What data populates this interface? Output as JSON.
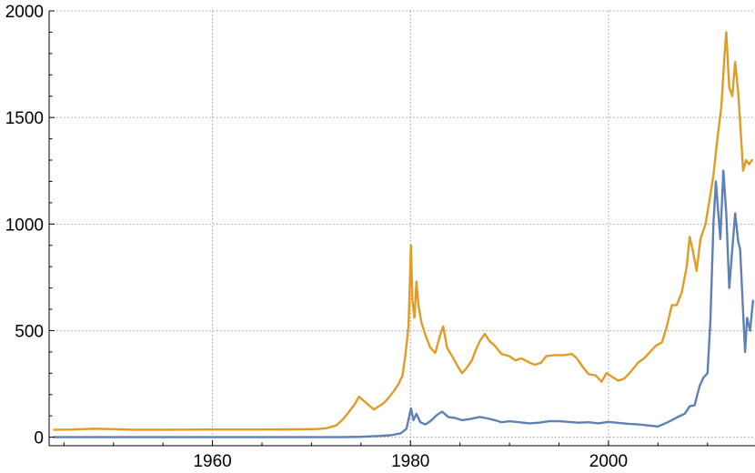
{
  "chart_data": {
    "type": "line",
    "title": "",
    "xlabel": "",
    "ylabel": "",
    "xlim": [
      1943.5,
      2014.8
    ],
    "ylim": [
      -40,
      2000
    ],
    "grid": true,
    "legend": "none",
    "x_ticks": [
      1960,
      1980,
      2000
    ],
    "x_tick_labels": [
      "1960",
      "1980",
      "2000"
    ],
    "y_ticks": [
      0,
      500,
      1000,
      1500,
      2000
    ],
    "y_tick_labels": [
      "0",
      "500",
      "1000",
      "1500",
      "2000"
    ],
    "series": [
      {
        "color": "#E09C24",
        "points": [
          [
            1944,
            35
          ],
          [
            1946,
            36
          ],
          [
            1948,
            40
          ],
          [
            1950,
            38
          ],
          [
            1952,
            35
          ],
          [
            1955,
            35
          ],
          [
            1960,
            36
          ],
          [
            1965,
            36
          ],
          [
            1969,
            37
          ],
          [
            1970.5,
            38
          ],
          [
            1971.5,
            42
          ],
          [
            1972.5,
            55
          ],
          [
            1973.2,
            85
          ],
          [
            1973.8,
            120
          ],
          [
            1974.3,
            150
          ],
          [
            1974.8,
            190
          ],
          [
            1975.3,
            170
          ],
          [
            1975.8,
            150
          ],
          [
            1976.3,
            130
          ],
          [
            1976.8,
            145
          ],
          [
            1977.3,
            160
          ],
          [
            1977.8,
            185
          ],
          [
            1978.3,
            215
          ],
          [
            1978.8,
            250
          ],
          [
            1979.2,
            290
          ],
          [
            1979.5,
            390
          ],
          [
            1979.8,
            520
          ],
          [
            1980.05,
            900
          ],
          [
            1980.2,
            640
          ],
          [
            1980.4,
            560
          ],
          [
            1980.6,
            730
          ],
          [
            1980.8,
            620
          ],
          [
            1981.1,
            540
          ],
          [
            1981.5,
            480
          ],
          [
            1982,
            420
          ],
          [
            1982.5,
            395
          ],
          [
            1983,
            480
          ],
          [
            1983.3,
            520
          ],
          [
            1983.7,
            420
          ],
          [
            1984.2,
            380
          ],
          [
            1984.8,
            330
          ],
          [
            1985.2,
            300
          ],
          [
            1985.6,
            320
          ],
          [
            1986.2,
            360
          ],
          [
            1986.6,
            410
          ],
          [
            1987,
            450
          ],
          [
            1987.5,
            485
          ],
          [
            1988,
            450
          ],
          [
            1988.5,
            430
          ],
          [
            1989.2,
            390
          ],
          [
            1990,
            380
          ],
          [
            1990.6,
            360
          ],
          [
            1991.2,
            370
          ],
          [
            1992,
            350
          ],
          [
            1992.6,
            340
          ],
          [
            1993.2,
            350
          ],
          [
            1993.7,
            380
          ],
          [
            1994.5,
            385
          ],
          [
            1995.5,
            385
          ],
          [
            1996.3,
            390
          ],
          [
            1996.8,
            370
          ],
          [
            1997.4,
            330
          ],
          [
            1998,
            295
          ],
          [
            1998.7,
            290
          ],
          [
            1999.3,
            260
          ],
          [
            1999.8,
            300
          ],
          [
            2000.3,
            285
          ],
          [
            2001,
            265
          ],
          [
            2001.6,
            275
          ],
          [
            2002.2,
            305
          ],
          [
            2003,
            350
          ],
          [
            2003.6,
            370
          ],
          [
            2004.2,
            400
          ],
          [
            2004.8,
            430
          ],
          [
            2005.4,
            445
          ],
          [
            2005.9,
            520
          ],
          [
            2006.4,
            620
          ],
          [
            2006.9,
            620
          ],
          [
            2007.4,
            680
          ],
          [
            2007.9,
            800
          ],
          [
            2008.2,
            940
          ],
          [
            2008.5,
            880
          ],
          [
            2008.9,
            780
          ],
          [
            2009.3,
            930
          ],
          [
            2009.8,
            1000
          ],
          [
            2010.2,
            1110
          ],
          [
            2010.6,
            1230
          ],
          [
            2011,
            1400
          ],
          [
            2011.4,
            1550
          ],
          [
            2011.7,
            1780
          ],
          [
            2011.9,
            1900
          ],
          [
            2012.2,
            1640
          ],
          [
            2012.5,
            1600
          ],
          [
            2012.8,
            1760
          ],
          [
            2013.1,
            1620
          ],
          [
            2013.4,
            1400
          ],
          [
            2013.6,
            1250
          ],
          [
            2013.9,
            1300
          ],
          [
            2014.2,
            1280
          ],
          [
            2014.5,
            1300
          ]
        ]
      },
      {
        "color": "#5E81B5",
        "points": [
          [
            1944,
            0
          ],
          [
            1950,
            0
          ],
          [
            1955,
            0
          ],
          [
            1960,
            0
          ],
          [
            1965,
            0
          ],
          [
            1970,
            0
          ],
          [
            1973,
            0
          ],
          [
            1975,
            2
          ],
          [
            1977,
            6
          ],
          [
            1978,
            9
          ],
          [
            1979,
            18
          ],
          [
            1979.6,
            40
          ],
          [
            1980.05,
            135
          ],
          [
            1980.3,
            80
          ],
          [
            1980.6,
            110
          ],
          [
            1981,
            70
          ],
          [
            1981.5,
            60
          ],
          [
            1982,
            75
          ],
          [
            1982.7,
            105
          ],
          [
            1983.2,
            120
          ],
          [
            1983.8,
            95
          ],
          [
            1984.5,
            90
          ],
          [
            1985.2,
            80
          ],
          [
            1986,
            85
          ],
          [
            1987,
            95
          ],
          [
            1987.8,
            88
          ],
          [
            1988.5,
            80
          ],
          [
            1989.2,
            70
          ],
          [
            1990,
            75
          ],
          [
            1991,
            70
          ],
          [
            1992,
            65
          ],
          [
            1993,
            68
          ],
          [
            1994,
            75
          ],
          [
            1995,
            75
          ],
          [
            1996,
            72
          ],
          [
            1997,
            68
          ],
          [
            1998,
            70
          ],
          [
            1999,
            65
          ],
          [
            2000,
            72
          ],
          [
            2001,
            67
          ],
          [
            2002,
            63
          ],
          [
            2003,
            60
          ],
          [
            2004,
            55
          ],
          [
            2005,
            50
          ],
          [
            2006,
            70
          ],
          [
            2007,
            95
          ],
          [
            2007.7,
            110
          ],
          [
            2008.2,
            145
          ],
          [
            2008.7,
            150
          ],
          [
            2009.2,
            240
          ],
          [
            2009.6,
            280
          ],
          [
            2010,
            300
          ],
          [
            2010.3,
            550
          ],
          [
            2010.6,
            1000
          ],
          [
            2010.85,
            1200
          ],
          [
            2011.1,
            1050
          ],
          [
            2011.3,
            930
          ],
          [
            2011.6,
            1250
          ],
          [
            2011.9,
            1050
          ],
          [
            2012.2,
            700
          ],
          [
            2012.5,
            880
          ],
          [
            2012.8,
            1050
          ],
          [
            2013.1,
            920
          ],
          [
            2013.3,
            880
          ],
          [
            2013.6,
            590
          ],
          [
            2013.8,
            400
          ],
          [
            2014.0,
            560
          ],
          [
            2014.3,
            500
          ],
          [
            2014.6,
            640
          ]
        ]
      }
    ]
  }
}
